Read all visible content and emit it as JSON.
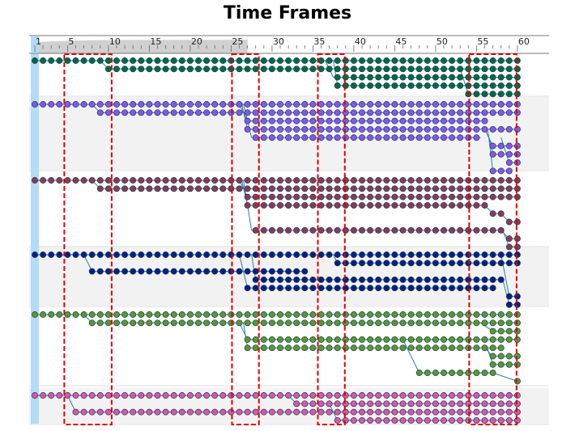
{
  "title": "Time Frames",
  "axis": {
    "min": 1,
    "max": 60,
    "labeled_ticks": [
      1,
      5,
      10,
      15,
      20,
      25,
      30,
      35,
      40,
      45,
      50,
      55,
      60
    ],
    "minor_tick_every": 1,
    "shaded_until": 27
  },
  "highlight_frames": [
    {
      "from": 5,
      "to": 10
    },
    {
      "from": 25.5,
      "to": 28
    },
    {
      "from": 36,
      "to": 38.5
    },
    {
      "from": 54.5,
      "to": 59.5
    }
  ],
  "groups": [
    {
      "color": "#006b3f",
      "band": "#ffffff",
      "tracks": [
        {
          "segs": [
            [
              1,
              60
            ]
          ]
        },
        {
          "segs": [
            [
              10,
              60
            ]
          ],
          "parent": 0,
          "branch_at": 9
        },
        {
          "segs": [
            [
              37.5,
              60
            ]
          ],
          "parent": 0,
          "branch_at": 36.5
        },
        {
          "segs": [
            [
              38,
              60
            ]
          ],
          "parent": 0,
          "branch_at": 37.5
        },
        {
          "segs": [
            [
              54,
              60
            ]
          ],
          "parent": 1,
          "branch_at": 53
        }
      ]
    },
    {
      "color": "#8855ee",
      "band": "#f2f2f2",
      "tracks": [
        {
          "segs": [
            [
              1,
              60
            ]
          ]
        },
        {
          "segs": [
            [
              9,
              60
            ]
          ],
          "parent": 0,
          "branch_at": 8
        },
        {
          "segs": [
            [
              27,
              56
            ]
          ],
          "parent": 0,
          "branch_at": 26
        },
        {
          "segs": [
            [
              27,
              60
            ]
          ],
          "parent": 0,
          "branch_at": 26.3
        },
        {
          "segs": [
            [
              27.5,
              35
            ],
            [
              35,
              55.5
            ]
          ],
          "link": [
            35,
            35
          ],
          "parent": 0,
          "branch_at": 26.5
        },
        {
          "segs": [
            [
              57,
              60
            ]
          ],
          "parent": 3,
          "branch_at": 56
        },
        {
          "segs": [
            [
              57,
              60
            ]
          ],
          "parent": 3,
          "branch_at": 56.3
        },
        {
          "segs": [
            [
              59,
              60
            ]
          ],
          "parent": 4,
          "branch_at": 58
        },
        {
          "segs": [
            [
              57,
              59
            ]
          ],
          "parent": 4,
          "branch_at": 56.5,
          "link": [
            57,
            59
          ]
        }
      ]
    },
    {
      "color": "#8b3a52",
      "band": "#ffffff",
      "tracks": [
        {
          "segs": [
            [
              1,
              60
            ]
          ]
        },
        {
          "segs": [
            [
              9,
              60
            ]
          ],
          "parent": 0,
          "branch_at": 8
        },
        {
          "segs": [
            [
              27,
              60
            ]
          ],
          "parent": 0,
          "branch_at": 26
        },
        {
          "segs": [
            [
              27,
              32
            ],
            [
              32,
              56
            ]
          ],
          "parent": 0,
          "branch_at": 26.3
        },
        {
          "segs": [
            [
              57,
              58
            ]
          ],
          "parent": 3,
          "branch_at": 56
        },
        {
          "segs": [
            [
              59,
              60
            ]
          ],
          "parent": 4,
          "branch_at": 58
        },
        {
          "segs": [
            [
              27.5,
              58
            ]
          ],
          "parent": 0,
          "branch_at": 26.5
        },
        {
          "segs": [
            [
              59,
              60
            ]
          ],
          "parent": 6,
          "branch_at": 58
        },
        {
          "segs": [
            [
              59,
              60
            ]
          ],
          "parent": 6,
          "branch_at": 58.2
        }
      ]
    },
    {
      "color": "#0a1f80",
      "band": "#f2f2f2",
      "tracks": [
        {
          "segs": [
            [
              1,
              60
            ]
          ]
        },
        {
          "segs": [
            [
              38,
              60
            ]
          ],
          "parent": 0,
          "branch_at": 37.5
        },
        {
          "segs": [
            [
              8,
              34
            ]
          ],
          "parent": 0,
          "branch_at": 7
        },
        {
          "segs": [
            [
              28,
              58
            ]
          ],
          "parent": 0,
          "branch_at": 27.5
        },
        {
          "segs": [
            [
              27,
              41
            ],
            [
              41,
              47
            ],
            [
              47,
              57
            ]
          ],
          "parent": 0,
          "branch_at": 26
        },
        {
          "segs": [
            [
              59,
              60
            ]
          ],
          "parent": 0,
          "branch_at": 58
        },
        {
          "segs": [
            [
              59,
              60
            ]
          ],
          "parent": 3,
          "branch_at": 58.2
        }
      ]
    },
    {
      "color": "#5a9a2a",
      "band": "#ffffff",
      "tracks": [
        {
          "segs": [
            [
              1,
              60
            ]
          ]
        },
        {
          "segs": [
            [
              8,
              60
            ]
          ],
          "parent": 0,
          "branch_at": 7
        },
        {
          "segs": [
            [
              57,
              60
            ]
          ],
          "parent": 1,
          "branch_at": 55.5
        },
        {
          "segs": [
            [
              27,
              60
            ]
          ],
          "parent": 1,
          "branch_at": 26
        },
        {
          "segs": [
            [
              27,
              58
            ]
          ],
          "parent": 1,
          "branch_at": 26.5
        },
        {
          "segs": [
            [
              57,
              60
            ]
          ],
          "parent": 4,
          "branch_at": 56
        },
        {
          "segs": [
            [
              57,
              60
            ]
          ],
          "parent": 4,
          "branch_at": 56.3
        },
        {
          "segs": [
            [
              48,
              57
            ]
          ],
          "parent": 3,
          "branch_at": 46
        },
        {
          "segs": [
            [
              60,
              60
            ]
          ],
          "parent": 7,
          "branch_at": 57
        }
      ]
    },
    {
      "color": "#dd55aa",
      "band": "#f2f2f2",
      "tracks": [
        {
          "segs": [
            [
              1,
              60
            ]
          ]
        },
        {
          "segs": [
            [
              33,
              60
            ]
          ],
          "parent": 0,
          "branch_at": 32
        }
      ],
      "extra_lines": [
        {
          "segs": [
            [
              6,
              60
            ]
          ],
          "parent": 0,
          "branch_at": 5
        },
        {
          "segs": [
            [
              38,
              60
            ]
          ],
          "parent": 1,
          "branch_at": 37
        }
      ]
    }
  ]
}
